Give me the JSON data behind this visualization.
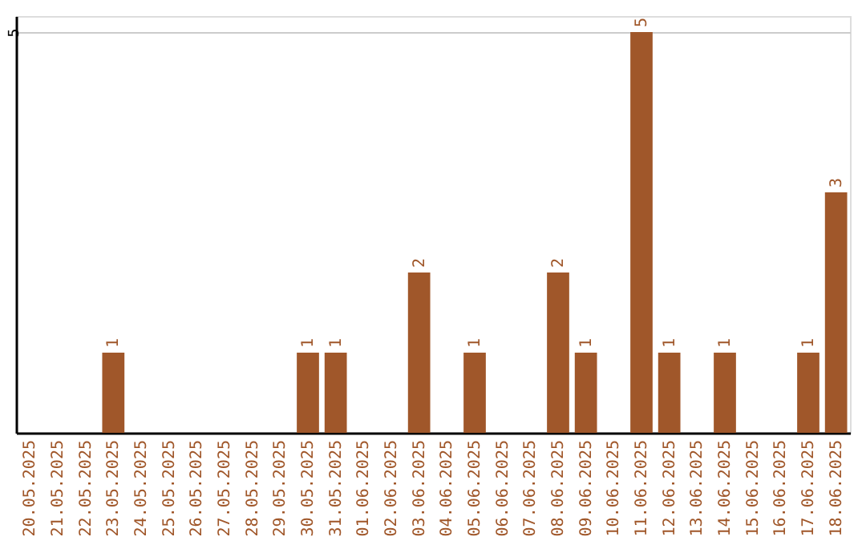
{
  "chart_data": {
    "type": "bar",
    "categories": [
      "20.05.2025",
      "21.05.2025",
      "22.05.2025",
      "23.05.2025",
      "24.05.2025",
      "25.05.2025",
      "26.05.2025",
      "27.05.2025",
      "28.05.2025",
      "29.05.2025",
      "30.05.2025",
      "31.05.2025",
      "01.06.2025",
      "02.06.2025",
      "03.06.2025",
      "04.06.2025",
      "05.06.2025",
      "06.06.2025",
      "07.06.2025",
      "08.06.2025",
      "09.06.2025",
      "10.06.2025",
      "11.06.2025",
      "12.06.2025",
      "13.06.2025",
      "14.06.2025",
      "15.06.2025",
      "16.06.2025",
      "17.06.2025",
      "18.06.2025"
    ],
    "values": [
      0,
      0,
      0,
      1,
      0,
      0,
      0,
      0,
      0,
      0,
      1,
      1,
      0,
      0,
      2,
      0,
      1,
      0,
      0,
      2,
      1,
      0,
      5,
      1,
      0,
      1,
      0,
      0,
      1,
      3
    ],
    "value_labels": [
      null,
      null,
      null,
      "1",
      null,
      null,
      null,
      null,
      null,
      null,
      "1",
      "1",
      null,
      null,
      "2",
      null,
      "1",
      null,
      null,
      "2",
      "1",
      null,
      "5",
      "1",
      null,
      "1",
      null,
      null,
      "1",
      "3"
    ],
    "color": "#a0572a",
    "ylim": [
      0,
      5.2
    ],
    "yticks": [
      5
    ],
    "grid": "y"
  }
}
